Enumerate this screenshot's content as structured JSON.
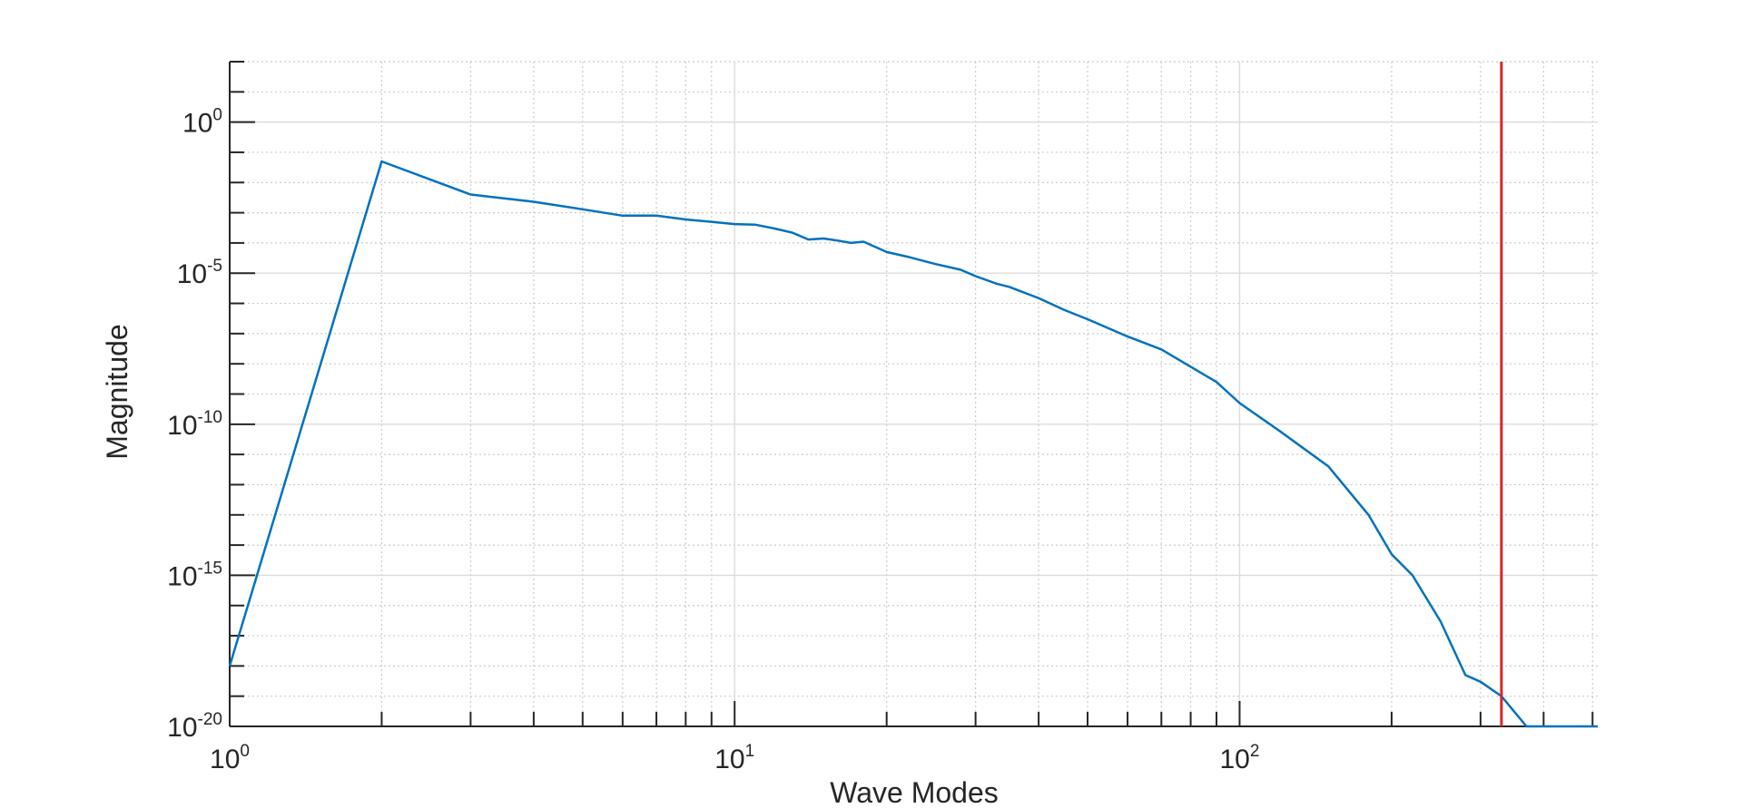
{
  "chart_data": {
    "type": "line",
    "title": "",
    "xlabel": "Wave Modes",
    "ylabel": "Magnitude",
    "xscale": "log",
    "yscale": "log",
    "xlim": [
      1,
      512
    ],
    "ylim": [
      1e-20,
      100
    ],
    "grid": true,
    "minor_grid": true,
    "colors": {
      "series": "#0072BD",
      "cutoff": "#D62728",
      "axis": "#262626",
      "major_grid": "#dcdcdc",
      "minor_grid": "#cccccc"
    },
    "x_tick_labels": [
      {
        "value": 1,
        "base": "10",
        "exp": "0"
      },
      {
        "value": 10,
        "base": "10",
        "exp": "1"
      },
      {
        "value": 100,
        "base": "10",
        "exp": "2"
      }
    ],
    "y_tick_labels": [
      {
        "value": 1,
        "base": "10",
        "exp": "0"
      },
      {
        "value": 1e-05,
        "base": "10",
        "exp": "-5"
      },
      {
        "value": 1e-10,
        "base": "10",
        "exp": "-10"
      },
      {
        "value": 1e-15,
        "base": "10",
        "exp": "-15"
      },
      {
        "value": 1e-20,
        "base": "10",
        "exp": "-20"
      }
    ],
    "series": [
      {
        "x": [
          1,
          2,
          3,
          4,
          5,
          6,
          7,
          8,
          9,
          10,
          11,
          12,
          13,
          14,
          15,
          16,
          17,
          18,
          20,
          22,
          25,
          28,
          30,
          33,
          35,
          40,
          45,
          50,
          55,
          60,
          70,
          80,
          90,
          100,
          120,
          150,
          180,
          200,
          220,
          250,
          280,
          300,
          330,
          370,
          400,
          450,
          512
        ],
        "y": [
          1e-18,
          0.05,
          0.004,
          0.0023,
          0.0013,
          0.0008,
          0.0008,
          0.0006,
          0.0005,
          0.00042,
          0.0004,
          0.0003,
          0.00022,
          0.00013,
          0.00014,
          0.00012,
          0.0001,
          0.00011,
          5e-05,
          3.5e-05,
          2e-05,
          1.3e-05,
          8e-06,
          4.5e-06,
          3.5e-06,
          1.5e-06,
          6e-07,
          3e-07,
          1.5e-07,
          8e-08,
          3e-08,
          8e-09,
          2.5e-09,
          5e-10,
          6e-11,
          4e-12,
          1e-13,
          5e-15,
          1e-15,
          3e-17,
          5e-19,
          3e-19,
          1e-19,
          1e-20,
          1e-20,
          1e-20,
          1e-20
        ]
      }
    ],
    "vertical_line": {
      "x": 330
    }
  }
}
